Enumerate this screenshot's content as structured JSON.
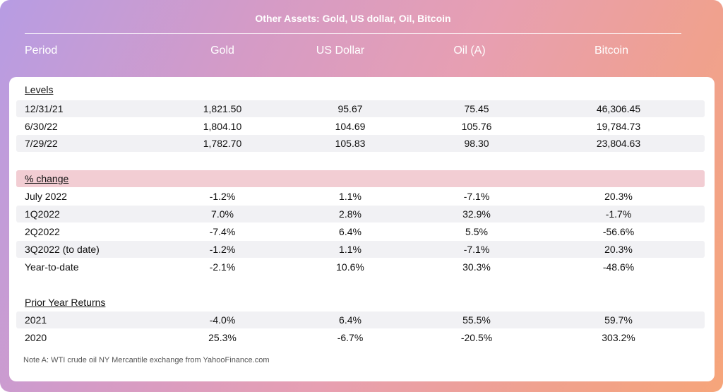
{
  "title": "Other Assets: Gold, US dollar, Oil, Bitcoin",
  "columns": [
    "Period",
    "Gold",
    "US Dollar",
    "Oil (A)",
    "Bitcoin"
  ],
  "sections": [
    {
      "title": "Levels",
      "rows": [
        {
          "label": "12/31/21",
          "values": [
            "1,821.50",
            "95.67",
            "75.45",
            "46,306.45"
          ]
        },
        {
          "label": "6/30/22",
          "values": [
            "1,804.10",
            "104.69",
            "105.76",
            "19,784.73"
          ]
        },
        {
          "label": "7/29/22",
          "values": [
            "1,782.70",
            "105.83",
            "98.30",
            "23,804.63"
          ]
        }
      ]
    },
    {
      "title": "% change",
      "rows": [
        {
          "label": "July 2022",
          "values": [
            "-1.2%",
            "1.1%",
            "-7.1%",
            "20.3%"
          ]
        },
        {
          "label": "1Q2022",
          "values": [
            "7.0%",
            "2.8%",
            "32.9%",
            "-1.7%"
          ]
        },
        {
          "label": "2Q2022",
          "values": [
            "-7.4%",
            "6.4%",
            "5.5%",
            "-56.6%"
          ]
        },
        {
          "label": "3Q2022 (to date)",
          "values": [
            "-1.2%",
            "1.1%",
            "-7.1%",
            "20.3%"
          ]
        },
        {
          "label": "Year-to-date",
          "values": [
            "-2.1%",
            "10.6%",
            "30.3%",
            "-48.6%"
          ]
        }
      ]
    },
    {
      "title": "Prior Year Returns",
      "rows": [
        {
          "label": "2021",
          "values": [
            "-4.0%",
            "6.4%",
            "55.5%",
            "59.7%"
          ]
        },
        {
          "label": "2020",
          "values": [
            "25.3%",
            "-6.7%",
            "-20.5%",
            "303.2%"
          ]
        }
      ]
    }
  ],
  "note": "Note A: WTI crude oil NY Mercantile exchange from YahooFinance.com",
  "colors": {
    "row_shade": "#f1f1f4",
    "highlight": "#f2cdd3"
  }
}
